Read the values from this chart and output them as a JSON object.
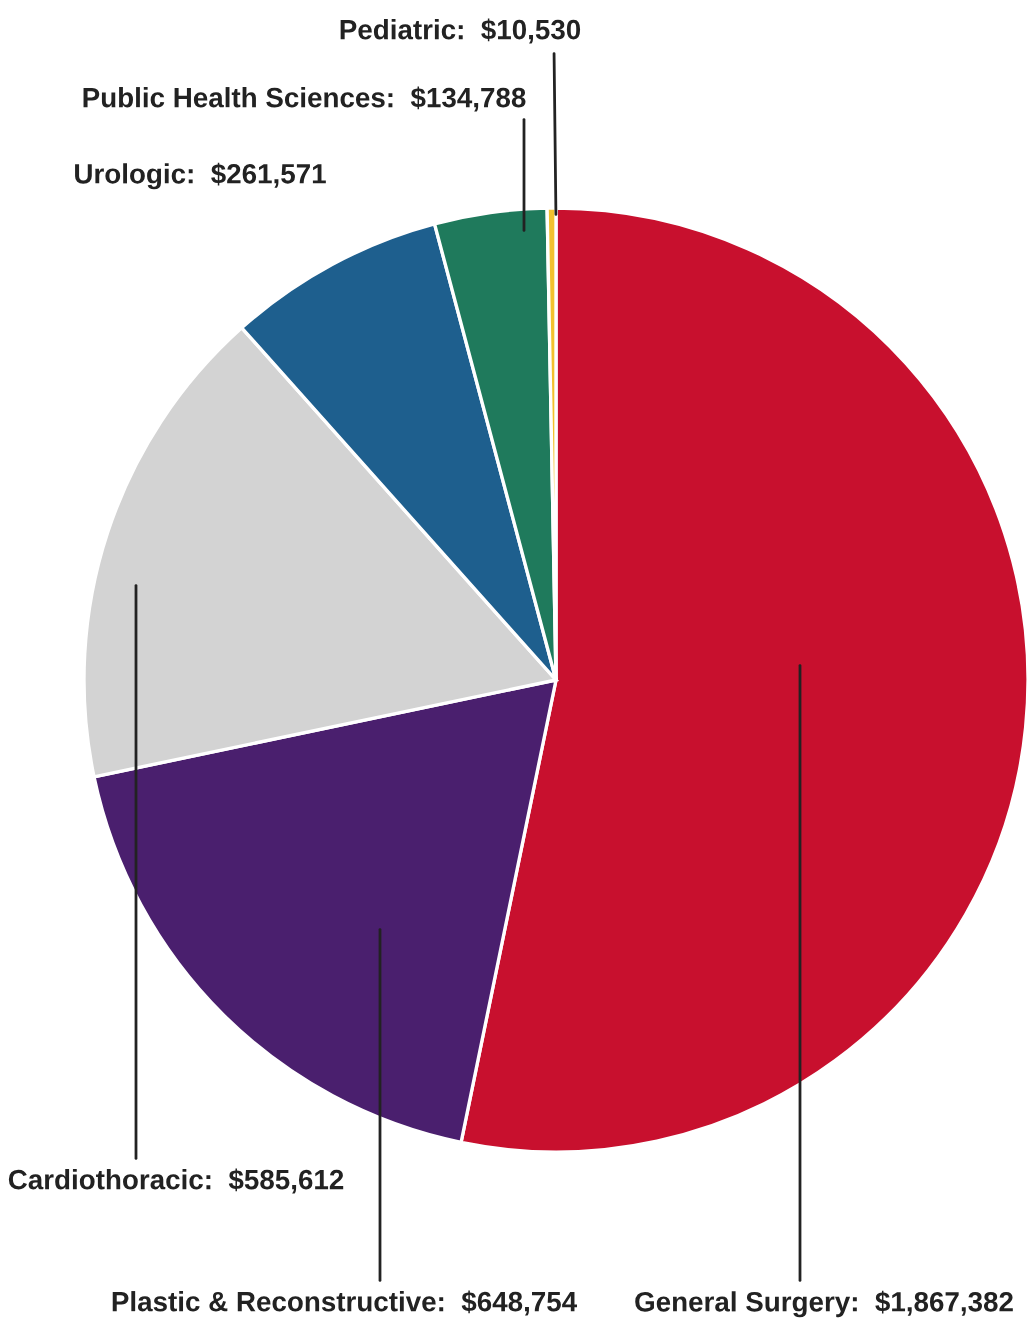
{
  "chart_data": {
    "type": "pie",
    "categories": [
      "General Surgery",
      "Plastic & Reconstructive",
      "Cardiothoracic",
      "Urologic",
      "Public Health Sciences",
      "Pediatric"
    ],
    "values": [
      1867382,
      648754,
      585612,
      261571,
      134788,
      10530
    ],
    "value_labels": [
      "$1,867,382",
      "$648,754",
      "$585,612",
      "$261,571",
      "$134,788",
      "$10,530"
    ],
    "colors": [
      "#c8102e",
      "#4a1f6e",
      "#d3d3d3",
      "#1e5f8e",
      "#1f7a5c",
      "#f2c12e"
    ]
  }
}
